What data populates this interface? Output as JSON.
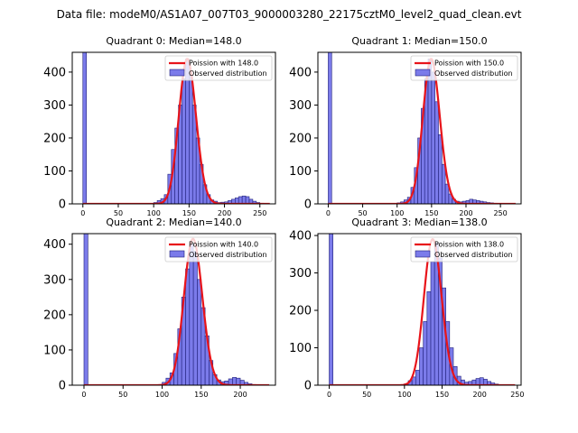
{
  "figure": {
    "suptitle": "Data file: modeM0/AS1A07_007T03_9000003280_22175cztM0_level2_quad_clean.evt"
  },
  "colors": {
    "bar_fill": "#7b7bea",
    "bar_edge": "#1f1f7a",
    "curve": "#e8141a",
    "axis": "#000000"
  },
  "chart_data": [
    {
      "type": "bar",
      "title": "Quadrant 0: Median=148.0",
      "xlim": [
        -15,
        272
      ],
      "ylim": [
        0,
        460
      ],
      "xticks": [
        0,
        50,
        100,
        150,
        200,
        250
      ],
      "yticks": [
        0,
        100,
        200,
        300,
        400
      ],
      "bin_width": 5,
      "legend": [
        "Poission with 148.0",
        "Observed distribution"
      ],
      "legend_position": "top-right",
      "bins": [
        [
          0,
          460
        ],
        [
          100,
          4
        ],
        [
          105,
          10
        ],
        [
          110,
          16
        ],
        [
          115,
          28
        ],
        [
          120,
          90
        ],
        [
          125,
          165
        ],
        [
          130,
          230
        ],
        [
          135,
          300
        ],
        [
          140,
          380
        ],
        [
          145,
          440
        ],
        [
          150,
          390
        ],
        [
          155,
          300
        ],
        [
          160,
          200
        ],
        [
          165,
          120
        ],
        [
          170,
          58
        ],
        [
          175,
          28
        ],
        [
          180,
          12
        ],
        [
          185,
          8
        ],
        [
          190,
          4
        ],
        [
          195,
          5
        ],
        [
          200,
          6
        ],
        [
          205,
          10
        ],
        [
          210,
          14
        ],
        [
          215,
          18
        ],
        [
          220,
          22
        ],
        [
          225,
          24
        ],
        [
          230,
          22
        ],
        [
          235,
          14
        ],
        [
          240,
          8
        ],
        [
          245,
          4
        ],
        [
          250,
          2
        ]
      ],
      "poisson": {
        "mean": 148.0,
        "peak": 440
      }
    },
    {
      "type": "bar",
      "title": "Quadrant 1: Median=150.0",
      "xlim": [
        -15,
        280
      ],
      "ylim": [
        0,
        460
      ],
      "xticks": [
        0,
        50,
        100,
        150,
        200,
        250
      ],
      "yticks": [
        0,
        100,
        200,
        300,
        400
      ],
      "bin_width": 5,
      "legend": [
        "Poission with 150.0",
        "Observed distribution"
      ],
      "legend_position": "top-right",
      "bins": [
        [
          0,
          460
        ],
        [
          100,
          3
        ],
        [
          105,
          6
        ],
        [
          110,
          12
        ],
        [
          115,
          20
        ],
        [
          120,
          50
        ],
        [
          125,
          110
        ],
        [
          130,
          200
        ],
        [
          135,
          290
        ],
        [
          140,
          380
        ],
        [
          145,
          440
        ],
        [
          150,
          400
        ],
        [
          155,
          310
        ],
        [
          160,
          210
        ],
        [
          165,
          120
        ],
        [
          170,
          60
        ],
        [
          175,
          30
        ],
        [
          180,
          14
        ],
        [
          185,
          8
        ],
        [
          190,
          6
        ],
        [
          195,
          8
        ],
        [
          200,
          10
        ],
        [
          205,
          14
        ],
        [
          210,
          12
        ],
        [
          215,
          10
        ],
        [
          220,
          8
        ],
        [
          225,
          6
        ],
        [
          230,
          4
        ],
        [
          235,
          3
        ],
        [
          240,
          2
        ]
      ],
      "poisson": {
        "mean": 150.0,
        "peak": 440
      }
    },
    {
      "type": "bar",
      "title": "Quadrant 2: Median=140.0",
      "xlim": [
        -15,
        245
      ],
      "ylim": [
        0,
        430
      ],
      "xticks": [
        0,
        50,
        100,
        150,
        200
      ],
      "yticks": [
        0,
        100,
        200,
        300,
        400
      ],
      "bin_width": 5,
      "legend": [
        "Poission with 140.0",
        "Observed distribution"
      ],
      "legend_position": "top-right",
      "bins": [
        [
          0,
          430
        ],
        [
          95,
          2
        ],
        [
          100,
          8
        ],
        [
          105,
          20
        ],
        [
          110,
          35
        ],
        [
          115,
          90
        ],
        [
          120,
          160
        ],
        [
          125,
          250
        ],
        [
          130,
          330
        ],
        [
          135,
          400
        ],
        [
          140,
          380
        ],
        [
          145,
          300
        ],
        [
          150,
          220
        ],
        [
          155,
          140
        ],
        [
          160,
          70
        ],
        [
          165,
          30
        ],
        [
          170,
          15
        ],
        [
          175,
          10
        ],
        [
          180,
          12
        ],
        [
          185,
          18
        ],
        [
          190,
          22
        ],
        [
          195,
          20
        ],
        [
          200,
          14
        ],
        [
          205,
          8
        ],
        [
          210,
          4
        ],
        [
          215,
          2
        ]
      ],
      "poisson": {
        "mean": 140.0,
        "peak": 415
      }
    },
    {
      "type": "bar",
      "title": "Quadrant 3: Median=138.0",
      "xlim": [
        -15,
        255
      ],
      "ylim": [
        0,
        405
      ],
      "xticks": [
        0,
        50,
        100,
        150,
        200,
        250
      ],
      "yticks": [
        0,
        100,
        200,
        300,
        400
      ],
      "bin_width": 5,
      "legend": [
        "Poission with 138.0",
        "Observed distribution"
      ],
      "legend_position": "top-right",
      "bins": [
        [
          0,
          405
        ],
        [
          100,
          4
        ],
        [
          105,
          12
        ],
        [
          110,
          22
        ],
        [
          115,
          40
        ],
        [
          120,
          100
        ],
        [
          125,
          170
        ],
        [
          130,
          250
        ],
        [
          135,
          330
        ],
        [
          140,
          380
        ],
        [
          145,
          340
        ],
        [
          150,
          260
        ],
        [
          155,
          170
        ],
        [
          160,
          100
        ],
        [
          165,
          50
        ],
        [
          170,
          24
        ],
        [
          175,
          14
        ],
        [
          180,
          8
        ],
        [
          185,
          10
        ],
        [
          190,
          14
        ],
        [
          195,
          18
        ],
        [
          200,
          20
        ],
        [
          205,
          16
        ],
        [
          210,
          10
        ],
        [
          215,
          6
        ],
        [
          220,
          3
        ]
      ],
      "poisson": {
        "mean": 138.0,
        "peak": 390
      }
    }
  ]
}
